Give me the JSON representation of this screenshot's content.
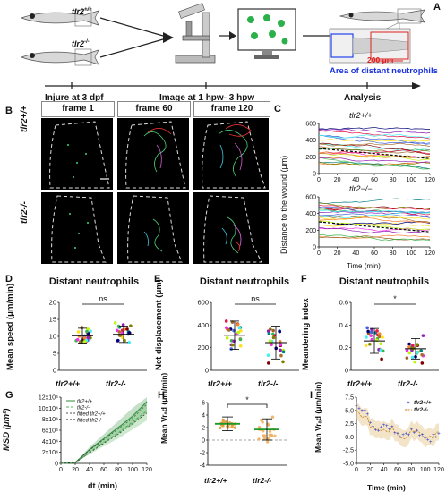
{
  "panels": {
    "A": {
      "label": "A",
      "wt": "tlr2",
      "wt_sup": "+/+",
      "ko": "tlr2",
      "ko_sup": "-/-",
      "steps": [
        "Injure at 3 dpf",
        "Image at 1 hpw- 3 hpw",
        "Analysis"
      ],
      "scale": "200 μm",
      "area": "Area of distant neutrophils"
    },
    "B": {
      "label": "B",
      "frames": [
        "frame 1",
        "frame 60",
        "frame 120"
      ],
      "rows": [
        "tlr2+/+",
        "tlr2-/-"
      ]
    },
    "C": {
      "label": "C",
      "top_title": "tlr2+/+",
      "bottom_title": "tlr2−/−",
      "ylabel": "Distance to the wound (μm)",
      "xlabel": "Time (min)"
    },
    "D": {
      "label": "D",
      "title": "Distant neutrophils",
      "ylabel": "Mean speed (μm/min)",
      "sig": "ns"
    },
    "E": {
      "label": "E",
      "title": "Distant neutrophils",
      "ylabel": "Net displacement (μm)",
      "sig": "ns"
    },
    "F": {
      "label": "F",
      "title": "Distant neutrophils",
      "ylabel": "Meandering index",
      "sig": "*"
    },
    "G": {
      "label": "G",
      "ylabel": "MSD (μm²)",
      "xlabel": "dt (min)",
      "legend": [
        "tlr2+/+",
        "tlr2-/-",
        "fitted tlr2+/+",
        "fitted tlr2-/-"
      ]
    },
    "H": {
      "label": "H",
      "ylabel": "Mean Vrₐd (μm/min)",
      "sig": "*"
    },
    "I": {
      "label": "I",
      "ylabel": "Mean Vrₐd (μm/min)",
      "xlabel": "Time (min)",
      "legend": [
        "tlr2+/+",
        "tlr2-/-"
      ]
    }
  },
  "categories": [
    "tlr2+/+",
    "tlr2-/-"
  ],
  "chart_data": [
    {
      "id": "C-top",
      "type": "line",
      "x_range": [
        0,
        120
      ],
      "ylim": [
        0,
        600
      ],
      "xticks": [
        0,
        20,
        40,
        60,
        80,
        100,
        120
      ],
      "yticks": [
        0,
        200,
        400,
        600
      ]
    },
    {
      "id": "C-bottom",
      "type": "line",
      "x_range": [
        0,
        120
      ],
      "ylim": [
        0,
        600
      ],
      "xticks": [
        0,
        20,
        40,
        60,
        80,
        100,
        120
      ],
      "yticks": [
        0,
        200,
        400,
        600
      ]
    },
    {
      "id": "D",
      "type": "scatter",
      "categories": [
        "tlr2+/+",
        "tlr2-/-"
      ],
      "means": [
        10.2,
        10.6
      ],
      "sd": [
        2.2,
        2.4
      ],
      "ylim": [
        0,
        20
      ],
      "yticks": [
        0,
        5,
        10,
        15,
        20
      ]
    },
    {
      "id": "E",
      "type": "scatter",
      "categories": [
        "tlr2+/+",
        "tlr2-/-"
      ],
      "means": [
        310,
        245
      ],
      "sd": [
        125,
        145
      ],
      "ylim": [
        0,
        600
      ],
      "yticks": [
        0,
        200,
        400,
        600
      ]
    },
    {
      "id": "F",
      "type": "scatter",
      "categories": [
        "tlr2+/+",
        "tlr2-/-"
      ],
      "means": [
        0.26,
        0.19
      ],
      "sd": [
        0.11,
        0.09
      ],
      "ylim": [
        0,
        0.6
      ],
      "yticks": [
        0.0,
        0.2,
        0.4,
        0.6
      ]
    },
    {
      "id": "G",
      "type": "line",
      "x": [
        0,
        20,
        40,
        60,
        80,
        100,
        120
      ],
      "series": [
        {
          "name": "tlr2+/+",
          "values": [
            0,
            1500,
            25000,
            45000,
            65000,
            85000,
            112000
          ]
        },
        {
          "name": "tlr2-/-",
          "values": [
            0,
            1200,
            20000,
            38000,
            55000,
            75000,
            95000
          ]
        }
      ],
      "ylim": [
        0,
        120000
      ],
      "ytick_labels": [
        "0",
        "2x10⁴",
        "4x10⁴",
        "6x10⁴",
        "8x10⁴",
        "10x10⁴",
        "12x10⁴"
      ],
      "xticks": [
        0,
        20,
        40,
        60,
        80,
        100,
        120
      ]
    },
    {
      "id": "H",
      "type": "scatter",
      "categories": [
        "tlr2+/+",
        "tlr2-/-"
      ],
      "means": [
        2.6,
        1.7
      ],
      "sd": [
        1.1,
        1.7
      ],
      "ylim": [
        -4,
        6
      ],
      "yticks": [
        -4,
        -2,
        0,
        2,
        4,
        6
      ]
    },
    {
      "id": "I",
      "type": "line",
      "x_range": [
        0,
        120
      ],
      "ylim": [
        -5,
        7.5
      ],
      "yticks": [
        -5.0,
        -2.5,
        0.0,
        2.5,
        5.0,
        7.5
      ],
      "xticks": [
        0,
        20,
        40,
        60,
        80,
        100,
        120
      ]
    }
  ]
}
